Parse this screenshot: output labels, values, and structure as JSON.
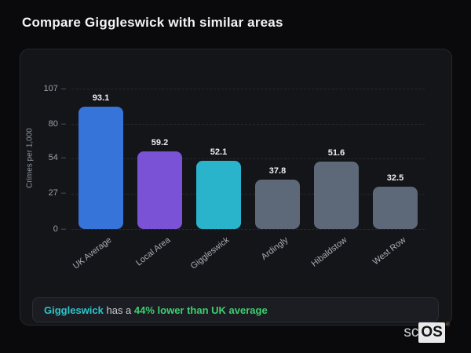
{
  "page": {
    "title": "Compare Giggleswick with similar areas",
    "background_color": "#0a0a0c",
    "card_background_color": "#141519"
  },
  "chart_data": {
    "type": "bar",
    "title": "",
    "xlabel": "",
    "ylabel": "Crimes per 1,000",
    "ylim": [
      0,
      107
    ],
    "yticks": [
      107,
      80,
      54,
      27,
      0
    ],
    "grid": "horizontal-dashed",
    "legend_position": "none",
    "categories": [
      "UK Average",
      "Local Area",
      "Giggleswick",
      "Ardingly",
      "Hibaldstow",
      "West Row"
    ],
    "values": [
      93.1,
      59.2,
      52.1,
      37.8,
      51.6,
      32.5
    ],
    "bar_colors": [
      "#3674d9",
      "#7a52d6",
      "#29b4cb",
      "#5d6879",
      "#5d6879",
      "#5d6879"
    ]
  },
  "note": {
    "area_name": "Giggleswick",
    "connector": " has a ",
    "highlight": "44% lower than UK average",
    "area_color": "#2cc5cb",
    "highlight_color": "#3ecf70"
  },
  "logo": {
    "prefix": "sc",
    "suffix": "OS",
    "registered": "®"
  }
}
